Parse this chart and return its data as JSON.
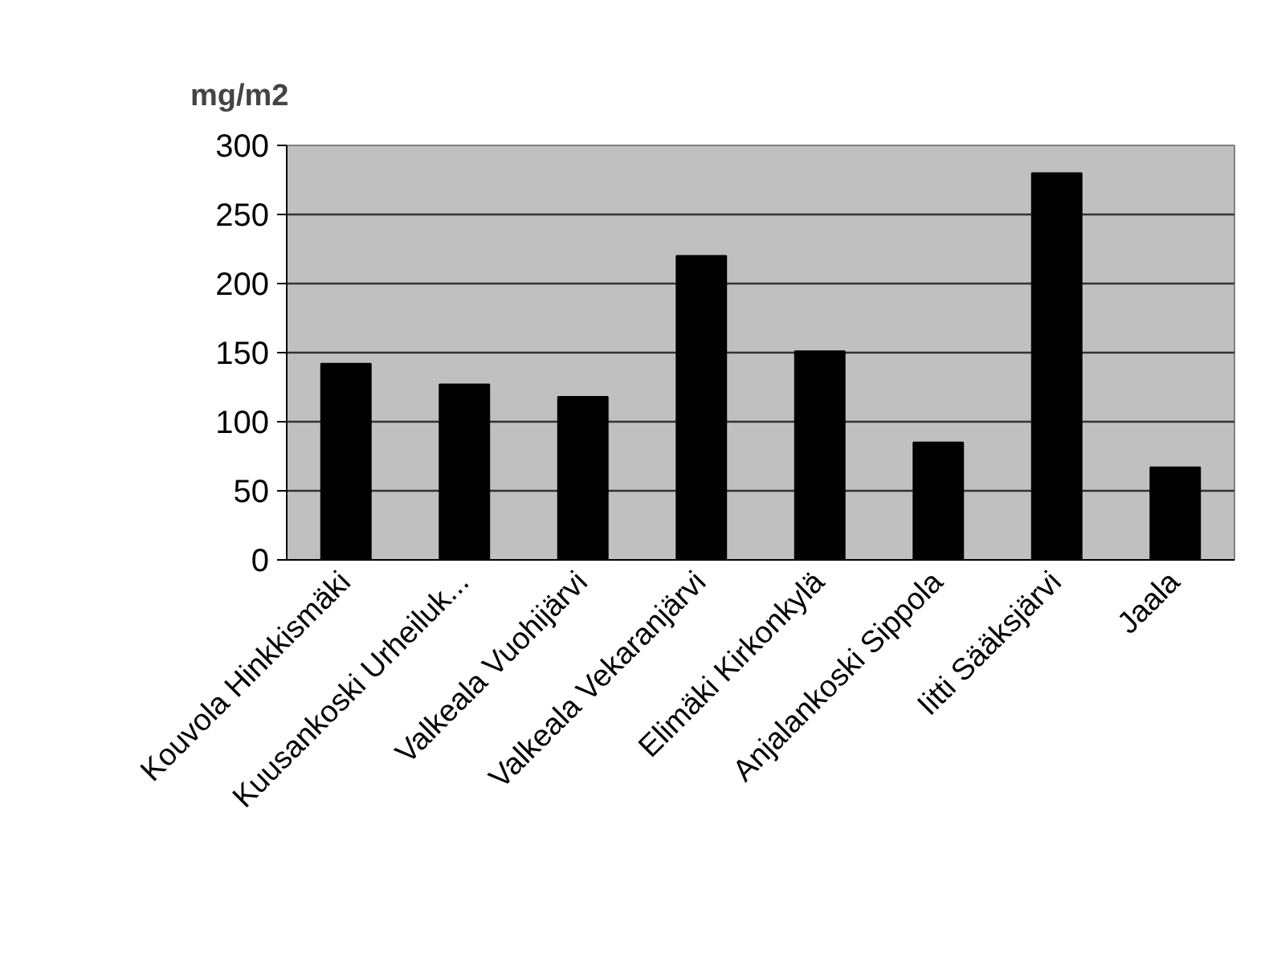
{
  "chart_data": {
    "type": "bar",
    "ylabel": "mg/m2",
    "categories": [
      "Kouvola Hinkkismäki",
      "Kuusankoski Urheiluk...",
      "Valkeala Vuohijärvi",
      "Valkeala Vekaranjärvi",
      "Elimäki Kirkonkylä",
      "Anjalankoski Sippola",
      "Iitti Sääksjärvi",
      "Jaala"
    ],
    "values": [
      142,
      127,
      118,
      220,
      151,
      85,
      280,
      67
    ],
    "color": "#000000",
    "ylim": [
      0,
      300
    ],
    "yticks": [
      0,
      50,
      100,
      150,
      200,
      250,
      300
    ],
    "grid": "y"
  }
}
